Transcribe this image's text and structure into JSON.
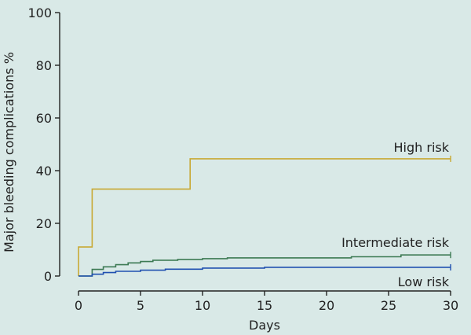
{
  "chart_data": {
    "type": "line",
    "xlabel": "Days",
    "ylabel": "Major bleeding complications %",
    "xlim": [
      0,
      30
    ],
    "ylim": [
      0,
      100
    ],
    "x_ticks": [
      0,
      5,
      10,
      15,
      20,
      25,
      30
    ],
    "y_ticks": [
      0,
      20,
      40,
      60,
      80,
      100
    ],
    "grid": false,
    "series": [
      {
        "name": "High risk",
        "color": "#c8a934",
        "step": true,
        "points": [
          [
            0,
            0
          ],
          [
            0,
            11
          ],
          [
            1.1,
            11
          ],
          [
            1.1,
            33
          ],
          [
            9,
            33
          ],
          [
            9,
            44.5
          ],
          [
            30,
            44.5
          ]
        ]
      },
      {
        "name": "Intermediate risk",
        "color": "#3d7a54",
        "step": true,
        "points": [
          [
            0,
            0
          ],
          [
            1.1,
            0
          ],
          [
            1.1,
            2.5
          ],
          [
            2,
            2.5
          ],
          [
            2,
            3.5
          ],
          [
            3,
            3.5
          ],
          [
            3,
            4.3
          ],
          [
            4,
            4.3
          ],
          [
            4,
            5
          ],
          [
            5,
            5
          ],
          [
            5,
            5.5
          ],
          [
            6,
            5.5
          ],
          [
            6,
            6
          ],
          [
            8,
            6
          ],
          [
            8,
            6.3
          ],
          [
            10,
            6.3
          ],
          [
            10,
            6.6
          ],
          [
            12,
            6.6
          ],
          [
            12,
            6.9
          ],
          [
            22,
            6.9
          ],
          [
            22,
            7.3
          ],
          [
            26,
            7.3
          ],
          [
            26,
            8
          ],
          [
            30,
            8
          ]
        ]
      },
      {
        "name": "Low risk",
        "color": "#2050b0",
        "step": true,
        "points": [
          [
            0,
            0
          ],
          [
            1.1,
            0
          ],
          [
            1.1,
            0.7
          ],
          [
            2,
            0.7
          ],
          [
            2,
            1.3
          ],
          [
            3,
            1.3
          ],
          [
            3,
            1.8
          ],
          [
            5,
            1.8
          ],
          [
            5,
            2.2
          ],
          [
            7,
            2.2
          ],
          [
            7,
            2.6
          ],
          [
            10,
            2.6
          ],
          [
            10,
            3
          ],
          [
            15,
            3
          ],
          [
            15,
            3.3
          ],
          [
            30,
            3.3
          ]
        ]
      }
    ]
  }
}
